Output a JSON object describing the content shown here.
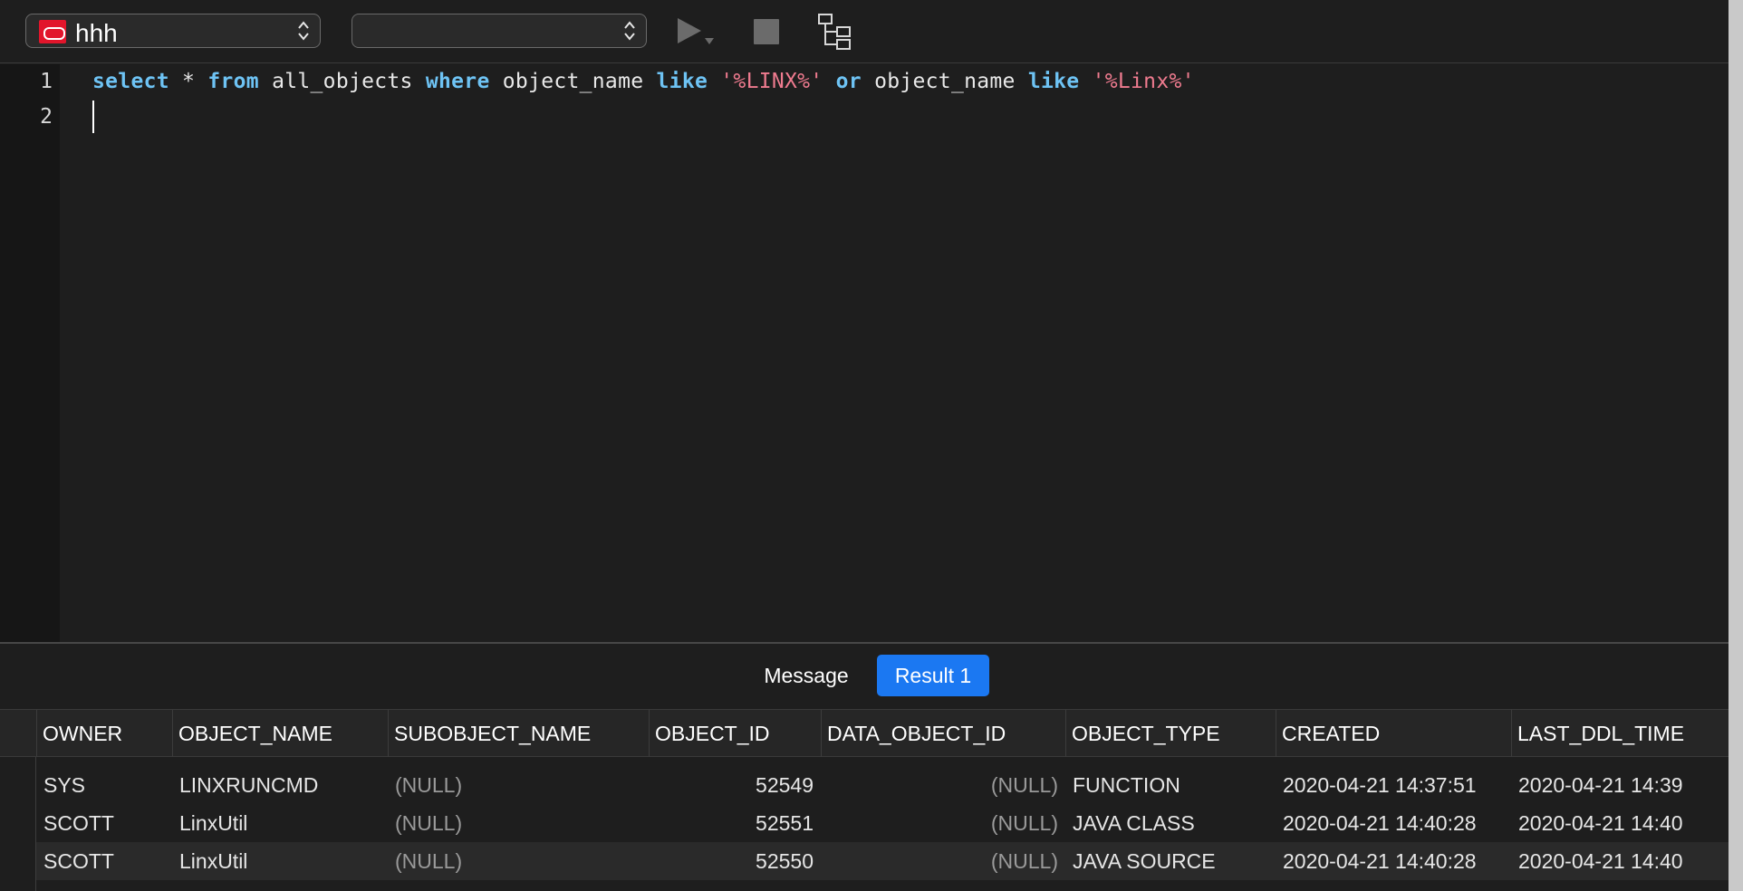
{
  "toolbar": {
    "connection": "hhh",
    "schema": "",
    "run_icon": "play-icon",
    "stop_icon": "stop-icon",
    "explain_icon": "explain-plan-icon"
  },
  "editor": {
    "line_numbers": [
      "1",
      "2"
    ],
    "lines": [
      [
        {
          "t": "select",
          "k": "kw"
        },
        {
          "t": " * ",
          "k": "plain"
        },
        {
          "t": "from",
          "k": "kw"
        },
        {
          "t": " all_objects ",
          "k": "plain"
        },
        {
          "t": "where",
          "k": "kw"
        },
        {
          "t": " object_name ",
          "k": "plain"
        },
        {
          "t": "like",
          "k": "kw"
        },
        {
          "t": " ",
          "k": "plain"
        },
        {
          "t": "'%LINX%'",
          "k": "str"
        },
        {
          "t": " ",
          "k": "plain"
        },
        {
          "t": "or",
          "k": "kw"
        },
        {
          "t": " object_name ",
          "k": "plain"
        },
        {
          "t": "like",
          "k": "kw"
        },
        {
          "t": " ",
          "k": "plain"
        },
        {
          "t": "'%Linx%'",
          "k": "str"
        }
      ],
      []
    ]
  },
  "tabs": {
    "message": "Message",
    "result": "Result 1",
    "active": "result"
  },
  "grid": {
    "columns": [
      "OWNER",
      "OBJECT_NAME",
      "SUBOBJECT_NAME",
      "OBJECT_ID",
      "DATA_OBJECT_ID",
      "OBJECT_TYPE",
      "CREATED",
      "LAST_DDL_TIME"
    ],
    "rows": [
      [
        "SYS",
        "LINXRUNCMD",
        "(NULL)",
        "52549",
        "(NULL)",
        "FUNCTION",
        "2020-04-21 14:37:51",
        "2020-04-21 14:39"
      ],
      [
        "SCOTT",
        "LinxUtil",
        "(NULL)",
        "52551",
        "(NULL)",
        "JAVA CLASS",
        "2020-04-21 14:40:28",
        "2020-04-21 14:40"
      ],
      [
        "SCOTT",
        "LinxUtil",
        "(NULL)",
        "52550",
        "(NULL)",
        "JAVA SOURCE",
        "2020-04-21 14:40:28",
        "2020-04-21 14:40"
      ]
    ]
  },
  "colors": {
    "keyword": "#6ec3f4",
    "string": "#ef7b8f",
    "active_tab": "#1b78f2",
    "oracle_red": "#e2152b"
  }
}
